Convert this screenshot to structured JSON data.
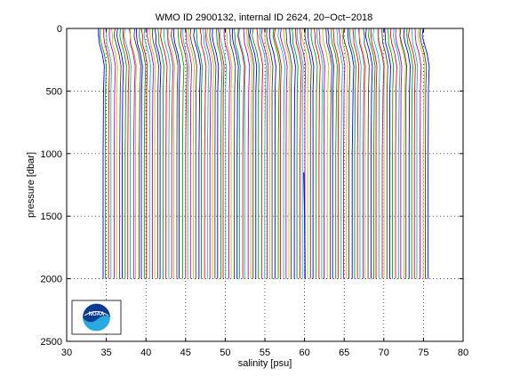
{
  "chart_data": {
    "type": "line",
    "title": "WMO ID 2900132, internal ID 2624, 20−Oct−2018",
    "xlabel": "salinity [psu]",
    "ylabel": "pressure [dbar]",
    "xlim": [
      30,
      80
    ],
    "ylim": [
      0,
      2500
    ],
    "y_reversed": true,
    "grid": true,
    "x_ticks": [
      "30",
      "35",
      "40",
      "45",
      "50",
      "55",
      "60",
      "65",
      "70",
      "75",
      "80"
    ],
    "y_ticks": [
      "0",
      "500",
      "1000",
      "1500",
      "2000",
      "2500"
    ],
    "x_tick_values": [
      30,
      35,
      40,
      45,
      50,
      55,
      60,
      65,
      70,
      75,
      80
    ],
    "y_tick_values": [
      0,
      500,
      1000,
      1500,
      2000,
      2500
    ],
    "profile_colors": [
      "#0000ff",
      "#00a000",
      "#ff0000",
      "#00c0c0",
      "#c000c0",
      "#c0c000",
      "#404040"
    ],
    "profiles": {
      "count": 120,
      "first_offset_psu": 34.6,
      "last_offset_psu": 75.6,
      "surface_shift_psu": -0.6,
      "surface_mixed_layer_dbar": 200,
      "max_pressure_dbar": 2000,
      "gap_offset_psu": 59.9
    }
  },
  "logo": {
    "name": "noaa-logo",
    "text": "NOAA"
  }
}
